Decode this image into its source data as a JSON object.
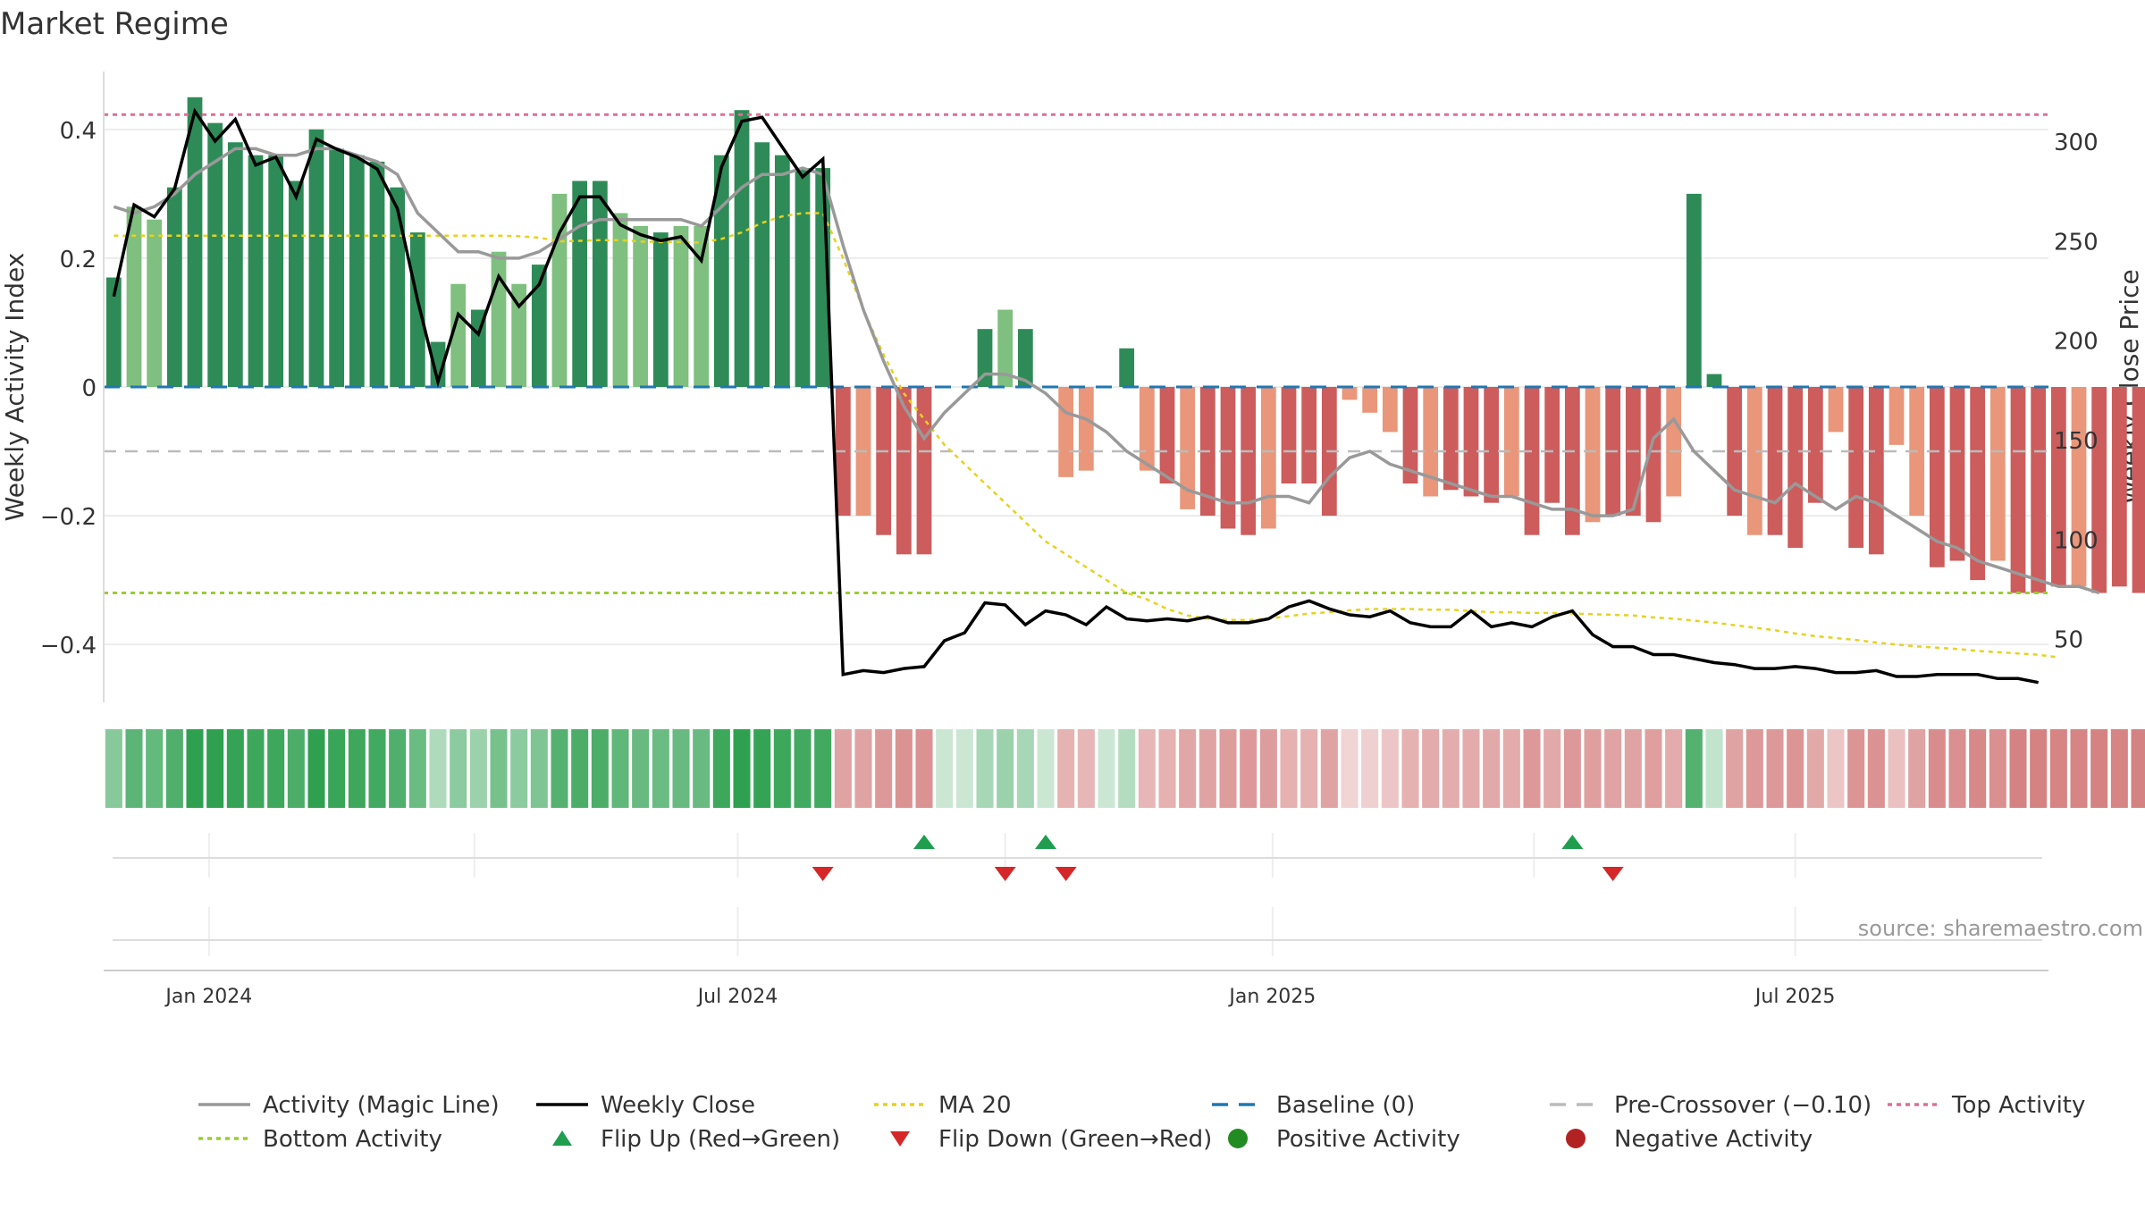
{
  "chart_data": {
    "type": "bar",
    "title": "Market Regime",
    "ylabel": "Weekly Activity Index",
    "y2label": "Weekly Close Price",
    "source": "source: sharemaestro.com",
    "ylim": [
      -0.49,
      0.49
    ],
    "y2lim": [
      18,
      335
    ],
    "yticks": [
      {
        "v": 0.4,
        "label": "0.4"
      },
      {
        "v": 0.2,
        "label": "0.2"
      },
      {
        "v": 0,
        "label": "0"
      },
      {
        "v": -0.2,
        "label": "−0.2"
      },
      {
        "v": -0.4,
        "label": "−0.4"
      }
    ],
    "y2ticks": [
      {
        "v": 300,
        "label": "300"
      },
      {
        "v": 250,
        "label": "250"
      },
      {
        "v": 200,
        "label": "200"
      },
      {
        "v": 150,
        "label": "150"
      },
      {
        "v": 100,
        "label": "100"
      },
      {
        "v": 50,
        "label": "50"
      }
    ],
    "xticks": [
      {
        "i": 5.2,
        "label": "Jan 2024"
      },
      {
        "i": 31.3,
        "label": "Jul 2024"
      },
      {
        "i": 57.7,
        "label": "Jan 2025"
      },
      {
        "i": 83.5,
        "label": "Jul 2025"
      }
    ],
    "xgrid_minor": [
      18.3,
      44.5,
      70.6
    ],
    "weeks": 96,
    "activity": [
      0.17,
      0.28,
      0.26,
      0.31,
      0.45,
      0.41,
      0.38,
      0.36,
      0.36,
      0.32,
      0.4,
      0.37,
      0.36,
      0.35,
      0.31,
      0.24,
      0.07,
      0.16,
      0.12,
      0.21,
      0.16,
      0.19,
      0.3,
      0.32,
      0.32,
      0.27,
      0.25,
      0.24,
      0.25,
      0.25,
      0.36,
      0.43,
      0.38,
      0.36,
      0.34,
      0.34,
      -0.2,
      -0.2,
      -0.23,
      -0.26,
      -0.26,
      0,
      0,
      0.09,
      0.12,
      0.09,
      0,
      -0.14,
      -0.13,
      0,
      0.06,
      -0.13,
      -0.15,
      -0.19,
      -0.2,
      -0.22,
      -0.23,
      -0.22,
      -0.15,
      -0.15,
      -0.2,
      -0.02,
      -0.04,
      -0.07,
      -0.15,
      -0.17,
      -0.16,
      -0.17,
      -0.18,
      -0.17,
      -0.23,
      -0.18,
      -0.23,
      -0.21,
      -0.2,
      -0.2,
      -0.21,
      -0.17,
      0.3,
      0.02,
      -0.2,
      -0.23,
      -0.23,
      -0.25,
      -0.18,
      -0.07,
      -0.25,
      -0.26,
      -0.09,
      -0.2,
      -0.28,
      -0.27,
      -0.3,
      -0.27,
      -0.32,
      -0.32,
      -0.31,
      -0.31,
      -0.32,
      -0.31,
      -0.32
    ],
    "close": [
      222,
      268,
      262,
      276,
      315,
      300,
      311,
      288,
      292,
      272,
      301,
      296,
      292,
      286,
      266,
      220,
      179,
      213,
      203,
      232,
      217,
      228,
      254,
      272,
      272,
      258,
      253,
      250,
      252,
      240,
      287,
      310,
      312,
      297,
      282,
      291,
      32,
      34,
      33,
      35,
      36,
      49,
      53,
      68,
      67,
      57,
      64,
      62,
      57,
      66,
      60,
      59,
      60,
      59,
      61,
      58,
      58,
      60,
      66,
      69,
      65,
      62,
      61,
      64,
      58,
      56,
      56,
      64,
      56,
      58,
      56,
      61,
      64,
      52,
      46,
      46,
      42,
      42,
      40,
      38,
      37,
      35,
      35,
      36,
      35,
      33,
      33,
      34,
      31,
      31,
      32,
      32,
      32,
      30,
      30,
      28
    ],
    "magic_line": [
      0.28,
      0.27,
      0.28,
      0.3,
      0.33,
      0.35,
      0.37,
      0.37,
      0.36,
      0.36,
      0.37,
      0.37,
      0.36,
      0.35,
      0.33,
      0.27,
      0.24,
      0.21,
      0.21,
      0.2,
      0.2,
      0.21,
      0.23,
      0.25,
      0.26,
      0.26,
      0.26,
      0.26,
      0.26,
      0.25,
      0.28,
      0.31,
      0.33,
      0.33,
      0.34,
      0.33,
      0.22,
      0.12,
      0.04,
      -0.03,
      -0.08,
      -0.04,
      -0.01,
      0.02,
      0.02,
      0.01,
      -0.01,
      -0.04,
      -0.05,
      -0.07,
      -0.1,
      -0.12,
      -0.14,
      -0.16,
      -0.17,
      -0.18,
      -0.18,
      -0.17,
      -0.17,
      -0.18,
      -0.14,
      -0.11,
      -0.1,
      -0.12,
      -0.13,
      -0.14,
      -0.15,
      -0.16,
      -0.17,
      -0.17,
      -0.18,
      -0.19,
      -0.19,
      -0.2,
      -0.2,
      -0.19,
      -0.08,
      -0.05,
      -0.1,
      -0.13,
      -0.16,
      -0.17,
      -0.18,
      -0.15,
      -0.17,
      -0.19,
      -0.17,
      -0.18,
      -0.2,
      -0.22,
      -0.24,
      -0.25,
      -0.27,
      -0.28,
      -0.29,
      -0.3,
      -0.31,
      -0.31,
      -0.32
    ],
    "ma20": [
      0.235,
      0.235,
      0.235,
      0.235,
      0.235,
      0.235,
      0.235,
      0.235,
      0.235,
      0.235,
      0.235,
      0.235,
      0.235,
      0.235,
      0.235,
      0.235,
      0.235,
      0.235,
      0.235,
      0.235,
      0.234,
      0.232,
      0.226,
      0.227,
      0.228,
      0.228,
      0.226,
      0.225,
      0.225,
      0.224,
      0.23,
      0.24,
      0.255,
      0.265,
      0.27,
      0.27,
      0.2,
      0.12,
      0.05,
      -0.01,
      -0.05,
      -0.09,
      -0.12,
      -0.15,
      -0.18,
      -0.21,
      -0.24,
      -0.26,
      -0.28,
      -0.3,
      -0.32,
      -0.33,
      -0.345,
      -0.355,
      -0.36,
      -0.362,
      -0.362,
      -0.36,
      -0.356,
      -0.352,
      -0.35,
      -0.347,
      -0.345,
      -0.345,
      -0.345,
      -0.346,
      -0.346,
      -0.348,
      -0.35,
      -0.35,
      -0.351,
      -0.351,
      -0.352,
      -0.353,
      -0.354,
      -0.355,
      -0.358,
      -0.36,
      -0.363,
      -0.366,
      -0.37,
      -0.374,
      -0.378,
      -0.383,
      -0.387,
      -0.39,
      -0.393,
      -0.397,
      -0.4,
      -0.403,
      -0.405,
      -0.407,
      -0.41,
      -0.412,
      -0.414,
      -0.416,
      -0.42
    ],
    "baseline": 0,
    "pre_crossover": -0.1,
    "top_activity": 0.423,
    "bottom_activity": -0.32,
    "flip_up_weeks": [
      40,
      46,
      72
    ],
    "flip_down_weeks": [
      35,
      44,
      47,
      74
    ],
    "colors": {
      "green_dark": "#2e8b57",
      "green_light": "#7fbf7f",
      "red_dark": "#cd5c5c",
      "red_light": "#e9967a",
      "close": "#000000",
      "magic": "#999999",
      "ma20": "#e6d21e",
      "baseline": "#1f77b4",
      "pre": "#bbbbbb",
      "top": "#db7093",
      "bottom": "#9acd32",
      "flip_up": "#1e9e4e",
      "flip_down": "#d62728",
      "pos_dot": "#228b22",
      "neg_dot": "#b22222"
    },
    "legend": [
      {
        "key": "magic",
        "label": "Activity (Magic Line)",
        "style": "solid",
        "color": "#999999"
      },
      {
        "key": "close",
        "label": "Weekly Close",
        "style": "solid",
        "color": "#000000"
      },
      {
        "key": "ma20",
        "label": "MA 20",
        "style": "dotted",
        "color": "#e6d21e"
      },
      {
        "key": "baseline",
        "label": "Baseline (0)",
        "style": "dashed",
        "color": "#1f77b4"
      },
      {
        "key": "pre",
        "label": "Pre-Crossover (−0.10)",
        "style": "dashed",
        "color": "#bbbbbb"
      },
      {
        "key": "top",
        "label": "Top Activity",
        "style": "dotted",
        "color": "#db7093"
      },
      {
        "key": "bottom",
        "label": "Bottom Activity",
        "style": "dotted",
        "color": "#9acd32"
      },
      {
        "key": "flip_up",
        "label": "Flip Up (Red→Green)",
        "style": "tri-up",
        "color": "#1e9e4e"
      },
      {
        "key": "flip_down",
        "label": "Flip Down (Green→Red)",
        "style": "tri-down",
        "color": "#d62728"
      },
      {
        "key": "pos",
        "label": "Positive Activity",
        "style": "dot",
        "color": "#228b22"
      },
      {
        "key": "neg",
        "label": "Negative Activity",
        "style": "dot",
        "color": "#b22222"
      }
    ]
  }
}
